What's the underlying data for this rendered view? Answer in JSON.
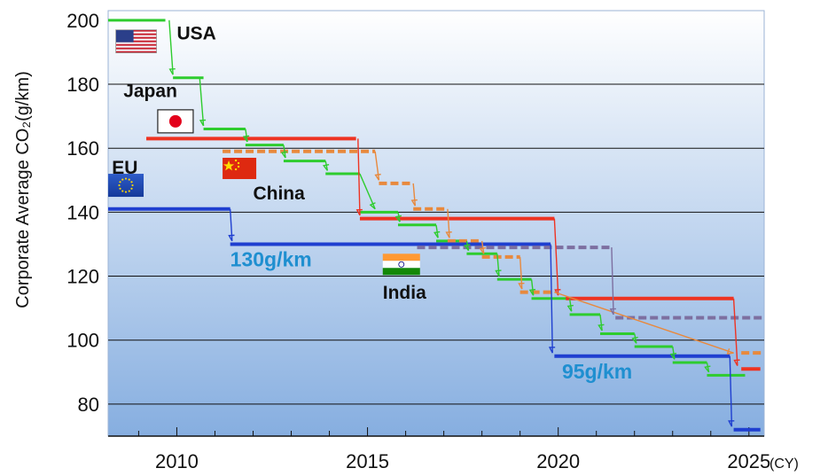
{
  "chart_data": {
    "type": "line",
    "title": "",
    "ylabel": "Corporate Average CO₂(g/km)",
    "xlabel": "",
    "x_unit": "(CY)",
    "xlim": [
      2008.2,
      2025.4
    ],
    "ylim": [
      70,
      203
    ],
    "x_ticks": [
      2010,
      2015,
      2020,
      2025
    ],
    "y_ticks": [
      80,
      100,
      120,
      140,
      160,
      180,
      200
    ],
    "grid": "horizontal",
    "series": [
      {
        "name": "USA",
        "color": "#2ecc2e",
        "style": "solid",
        "steps": [
          [
            2008.2,
            2009.7,
            200
          ],
          [
            2009.9,
            2010.7,
            182
          ],
          [
            2010.7,
            2011.8,
            166
          ],
          [
            2011.8,
            2012.8,
            161
          ],
          [
            2012.8,
            2013.9,
            156
          ],
          [
            2013.9,
            2014.8,
            152
          ],
          [
            2014.8,
            2015.8,
            140
          ],
          [
            2015.8,
            2016.8,
            136
          ],
          [
            2016.8,
            2017.6,
            131
          ],
          [
            2017.6,
            2018.4,
            127
          ],
          [
            2018.4,
            2019.3,
            119
          ],
          [
            2019.3,
            2020.3,
            113
          ],
          [
            2020.3,
            2021.1,
            108
          ],
          [
            2021.1,
            2022.0,
            102
          ],
          [
            2022.0,
            2023.0,
            98
          ],
          [
            2023.0,
            2023.9,
            93
          ],
          [
            2023.9,
            2024.9,
            89
          ]
        ]
      },
      {
        "name": "Japan",
        "color": "#ee3322",
        "style": "solid",
        "steps": [
          [
            2009.2,
            2014.7,
            163
          ],
          [
            2014.8,
            2019.9,
            138
          ],
          [
            2020.2,
            2024.6,
            113
          ],
          [
            2024.8,
            2025.3,
            91
          ]
        ]
      },
      {
        "name": "China",
        "color": "#e8893d",
        "style": "dashed",
        "steps": [
          [
            2011.2,
            2015.2,
            159
          ],
          [
            2015.3,
            2016.2,
            149
          ],
          [
            2016.2,
            2017.1,
            141
          ],
          [
            2017.1,
            2018.0,
            131
          ],
          [
            2018.0,
            2019.0,
            126
          ],
          [
            2019.0,
            2019.9,
            115
          ],
          [
            2024.8,
            2025.4,
            96
          ]
        ]
      },
      {
        "name": "EU",
        "color": "#1f3fd0",
        "style": "solid",
        "steps": [
          [
            2008.2,
            2011.4,
            141
          ],
          [
            2011.4,
            2019.8,
            130
          ],
          [
            2019.9,
            2024.5,
            95
          ],
          [
            2024.6,
            2025.3,
            72
          ]
        ]
      },
      {
        "name": "India",
        "color": "#7d6fa0",
        "style": "dashed",
        "steps": [
          [
            2016.3,
            2021.4,
            129
          ],
          [
            2021.5,
            2025.4,
            107
          ]
        ]
      }
    ],
    "arrows": [
      {
        "color": "#2ecc2e",
        "points": [
          [
            2009.8,
            200
          ],
          [
            2009.9,
            183
          ]
        ]
      },
      {
        "color": "#2ecc2e",
        "points": [
          [
            2010.6,
            182
          ],
          [
            2010.7,
            167
          ]
        ]
      },
      {
        "color": "#2ecc2e",
        "points": [
          [
            2011.8,
            166
          ],
          [
            2011.85,
            162
          ]
        ]
      },
      {
        "color": "#2ecc2e",
        "points": [
          [
            2012.8,
            161
          ],
          [
            2012.85,
            157
          ]
        ]
      },
      {
        "color": "#2ecc2e",
        "points": [
          [
            2013.9,
            156
          ],
          [
            2013.95,
            153
          ]
        ]
      },
      {
        "color": "#2ecc2e",
        "points": [
          [
            2014.8,
            152
          ],
          [
            2015.2,
            141
          ]
        ]
      },
      {
        "color": "#2ecc2e",
        "points": [
          [
            2015.8,
            140
          ],
          [
            2015.85,
            137
          ]
        ]
      },
      {
        "color": "#2ecc2e",
        "points": [
          [
            2016.8,
            136
          ],
          [
            2016.85,
            132
          ]
        ]
      },
      {
        "color": "#2ecc2e",
        "points": [
          [
            2017.6,
            131
          ],
          [
            2017.65,
            128
          ]
        ]
      },
      {
        "color": "#2ecc2e",
        "points": [
          [
            2018.4,
            127
          ],
          [
            2018.45,
            120
          ]
        ]
      },
      {
        "color": "#2ecc2e",
        "points": [
          [
            2019.3,
            119
          ],
          [
            2019.35,
            114
          ]
        ]
      },
      {
        "color": "#2ecc2e",
        "points": [
          [
            2020.3,
            113
          ],
          [
            2020.35,
            109
          ]
        ]
      },
      {
        "color": "#2ecc2e",
        "points": [
          [
            2021.1,
            108
          ],
          [
            2021.15,
            103
          ]
        ]
      },
      {
        "color": "#2ecc2e",
        "points": [
          [
            2022.0,
            102
          ],
          [
            2022.05,
            99
          ]
        ]
      },
      {
        "color": "#2ecc2e",
        "points": [
          [
            2023.0,
            98
          ],
          [
            2023.05,
            94
          ]
        ]
      },
      {
        "color": "#2ecc2e",
        "points": [
          [
            2023.9,
            93
          ],
          [
            2023.95,
            90
          ]
        ]
      },
      {
        "color": "#ee3322",
        "points": [
          [
            2014.75,
            163
          ],
          [
            2014.8,
            139
          ]
        ]
      },
      {
        "color": "#ee3322",
        "points": [
          [
            2019.9,
            138
          ],
          [
            2020.0,
            114
          ]
        ]
      },
      {
        "color": "#ee3322",
        "points": [
          [
            2024.6,
            113
          ],
          [
            2024.7,
            92
          ]
        ]
      },
      {
        "color": "#e8893d",
        "points": [
          [
            2015.2,
            159
          ],
          [
            2015.3,
            150
          ]
        ]
      },
      {
        "color": "#e8893d",
        "points": [
          [
            2016.2,
            149
          ],
          [
            2016.25,
            142
          ]
        ]
      },
      {
        "color": "#e8893d",
        "points": [
          [
            2017.1,
            141
          ],
          [
            2017.15,
            132
          ]
        ]
      },
      {
        "color": "#e8893d",
        "points": [
          [
            2018.0,
            131
          ],
          [
            2018.05,
            127
          ]
        ]
      },
      {
        "color": "#e8893d",
        "points": [
          [
            2019.0,
            126
          ],
          [
            2019.05,
            116
          ]
        ]
      },
      {
        "color": "#e8893d",
        "points": [
          [
            2019.9,
            115
          ],
          [
            2024.6,
            96
          ]
        ]
      },
      {
        "color": "#1f3fd0",
        "points": [
          [
            2011.4,
            141
          ],
          [
            2011.45,
            131
          ]
        ]
      },
      {
        "color": "#1f3fd0",
        "points": [
          [
            2019.8,
            130
          ],
          [
            2019.85,
            96
          ]
        ]
      },
      {
        "color": "#1f3fd0",
        "points": [
          [
            2024.5,
            95
          ],
          [
            2024.55,
            73
          ]
        ]
      },
      {
        "color": "#7d6fa0",
        "points": [
          [
            2021.4,
            129
          ],
          [
            2021.45,
            108
          ]
        ]
      }
    ],
    "labels": [
      {
        "name": "label-usa",
        "text": "USA",
        "x": 2010.0,
        "y": 194,
        "cls": "cname"
      },
      {
        "name": "label-japan",
        "text": "Japan",
        "x": 2008.6,
        "y": 176,
        "cls": "cname"
      },
      {
        "name": "label-eu",
        "text": "EU",
        "x": 2008.3,
        "y": 152,
        "cls": "cname"
      },
      {
        "name": "label-china",
        "text": "China",
        "x": 2012.0,
        "y": 144,
        "cls": "cname"
      },
      {
        "name": "label-india",
        "text": "India",
        "x": 2015.4,
        "y": 113,
        "cls": "cname"
      },
      {
        "name": "label-130g",
        "text": "130g/km",
        "x": 2011.4,
        "y": 123,
        "cls": "ann"
      },
      {
        "name": "label-95g",
        "text": "95g/km",
        "x": 2020.1,
        "y": 88,
        "cls": "ann"
      }
    ]
  },
  "flags": [
    {
      "name": "flag-usa",
      "country": "USA",
      "x": 2008.4,
      "y": 197
    },
    {
      "name": "flag-japan",
      "country": "Japan",
      "x": 2009.5,
      "y": 172
    },
    {
      "name": "flag-eu",
      "country": "EU",
      "x": 2008.2,
      "y": 152
    },
    {
      "name": "flag-china",
      "country": "China",
      "x": 2011.2,
      "y": 157
    },
    {
      "name": "flag-india",
      "country": "India",
      "x": 2015.4,
      "y": 127
    }
  ]
}
